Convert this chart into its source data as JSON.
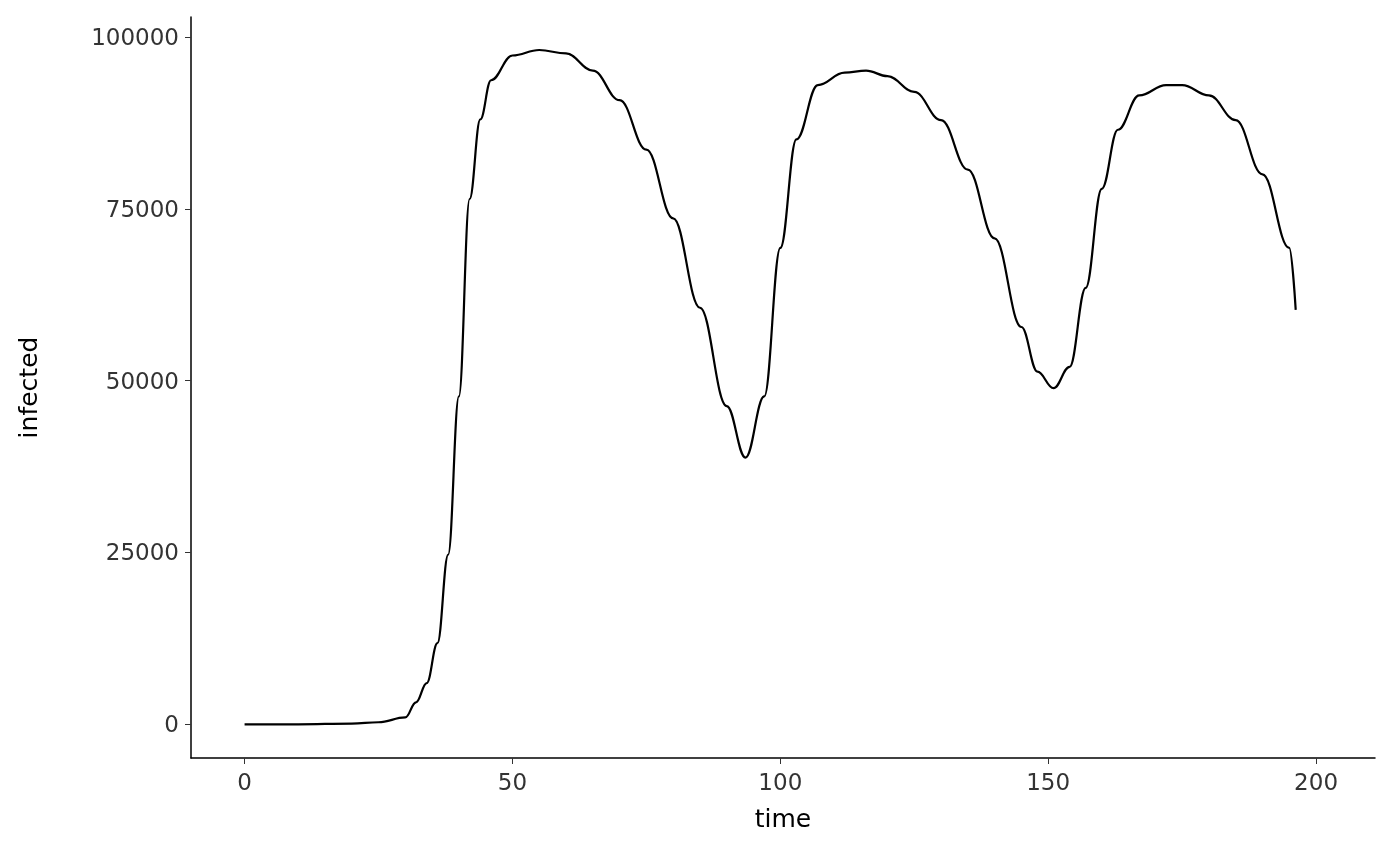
{
  "chart_data": {
    "type": "line",
    "xlabel": "time",
    "ylabel": "infected",
    "xlim": [
      -10,
      211
    ],
    "ylim": [
      -4900,
      102900
    ],
    "xticks": [
      0,
      50,
      100,
      150,
      200
    ],
    "yticks": [
      0,
      25000,
      50000,
      75000,
      100000
    ],
    "grid": false,
    "marker": "none",
    "line_style": "solid",
    "series": [
      {
        "color": "#000000",
        "x": [
          0,
          10,
          20,
          25,
          30,
          32,
          34,
          36,
          38,
          40,
          42,
          44,
          46,
          50,
          55,
          60,
          65,
          70,
          75,
          80,
          85,
          90,
          93.5,
          97,
          100,
          103,
          107,
          112,
          116,
          120,
          125,
          130,
          135,
          140,
          145,
          148,
          151,
          154,
          157,
          160,
          163,
          167,
          172,
          175,
          180,
          185,
          190,
          195,
          196.2
        ],
        "values": [
          0,
          0,
          100,
          300,
          1000,
          3200,
          6000,
          11800,
          24700,
          47700,
          76400,
          88000,
          93700,
          97300,
          98100,
          97600,
          95100,
          90800,
          83600,
          73600,
          60600,
          46300,
          38800,
          47700,
          69300,
          85100,
          93000,
          94800,
          95100,
          94300,
          92000,
          87900,
          80700,
          70700,
          57800,
          51300,
          48900,
          52000,
          63500,
          77900,
          86500,
          91500,
          93000,
          93000,
          91500,
          87900,
          80000,
          69300,
          60300
        ]
      }
    ]
  }
}
